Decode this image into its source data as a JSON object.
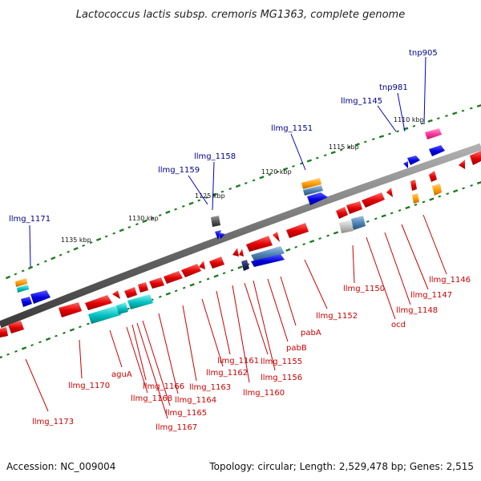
{
  "title": "Lactococcus lactis subsp. cremoris MG1363, complete genome",
  "footer": {
    "accession": "Accession: NC_009004",
    "summary": "Topology: circular; Length: 2,529,478 bp; Genes: 2,515"
  },
  "scale_labels": [
    "1110 kbp",
    "1115 kbp",
    "1120 kbp",
    "1125 kbp",
    "1130 kbp",
    "1135 kbp"
  ],
  "top_labels": [
    "tnp905",
    "tnp981",
    "llmg_1145",
    "llmg_1151",
    "llmg_1158",
    "llmg_1159",
    "llmg_1171"
  ],
  "bottom_labels": [
    "llmg_1146",
    "llmg_1147",
    "llmg_1148",
    "ocd",
    "llmg_1150",
    "llmg_1152",
    "pabA",
    "pabB",
    "llmg_1155",
    "llmg_1156",
    "llmg_1160",
    "llmg_1161",
    "llmg_1162",
    "llmg_1163",
    "llmg_1164",
    "llmg_1165",
    "llmg_1166",
    "llmg_1167",
    "llmg_1168",
    "aguA",
    "llmg_1170",
    "llmg_1173"
  ],
  "colors": {
    "forward_cds": "#0000ee",
    "reverse_cds": "#ee0000",
    "cyan_feature": "#00c8c8",
    "steel_feature": "#4a7fb0",
    "orange_feature": "#ff9900",
    "magenta_feature": "#ff3399",
    "backbone": "#808080",
    "ticks": "#1f7a1f"
  }
}
